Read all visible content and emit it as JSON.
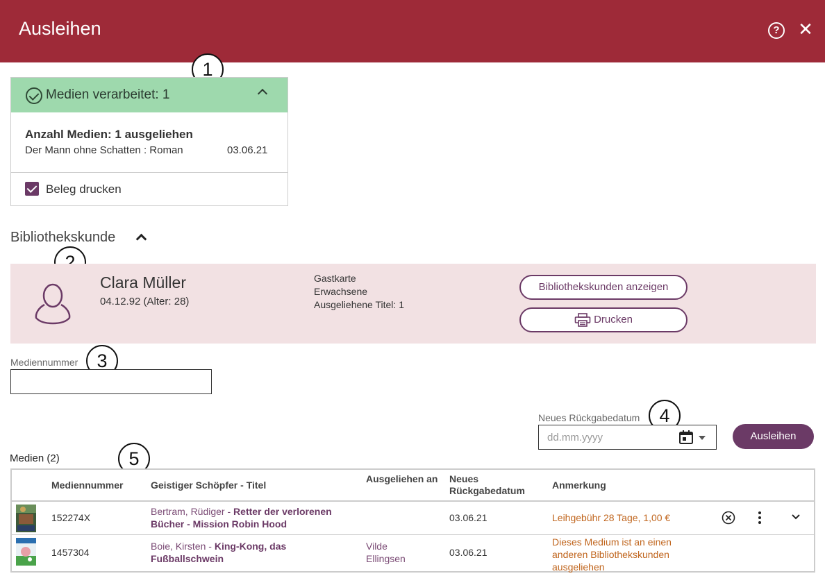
{
  "header": {
    "title": "Ausleihen"
  },
  "callouts": [
    "1",
    "2",
    "3",
    "4",
    "5"
  ],
  "processed": {
    "heading": "Medien verarbeitet: 1",
    "count_text": "Anzahl Medien: 1 ausgeliehen",
    "item_title": "Der Mann ohne Schatten : Roman",
    "item_date": "03.06.21",
    "print_receipt_label": "Beleg drucken",
    "print_receipt_checked": true
  },
  "customer_section": {
    "title": "Bibliothekskunde"
  },
  "customer": {
    "name": "Clara Müller",
    "dob": "04.12.92 (Alter: 28)",
    "card_type": "Gastkarte",
    "group": "Erwachsene",
    "borrowed": "Ausgeliehene Titel: 1",
    "show_button": "Bibliothekskunden anzeigen",
    "print_button": "Drucken"
  },
  "media_number": {
    "label": "Mediennummer",
    "value": ""
  },
  "return_date": {
    "label": "Neues Rückgabedatum",
    "placeholder": "dd.mm.yyyy"
  },
  "lend_button": "Ausleihen",
  "media": {
    "title": "Medien (2)",
    "columns": [
      "Mediennummer",
      "Geistiger Schöpfer - Titel",
      "Ausgeliehen an",
      "Neues Rückgabedatum",
      "Anmerkung"
    ],
    "rows": [
      {
        "number": "152274X",
        "author": "Bertram, Rüdiger",
        "separator": " - ",
        "title": "Retter der verlorenen Bücher - Mission Robin Hood",
        "lent_to": "",
        "return_date": "03.06.21",
        "note": "Leihgebühr 28 Tage, 1,00 €"
      },
      {
        "number": "1457304",
        "author": "Boie, Kirsten",
        "separator": " - ",
        "title": "King-Kong, das Fußballschwein",
        "lent_to": "Vilde Ellingsen",
        "return_date": "03.06.21",
        "note": "Dieses Medium ist an einen anderen Bibliothekskunden ausgeliehen"
      }
    ]
  },
  "colors": {
    "header": "#9e2a38",
    "success": "#9ed9ad",
    "accent": "#6b3a66",
    "customer_bg": "#f2e1e3",
    "note": "#c0651d"
  }
}
